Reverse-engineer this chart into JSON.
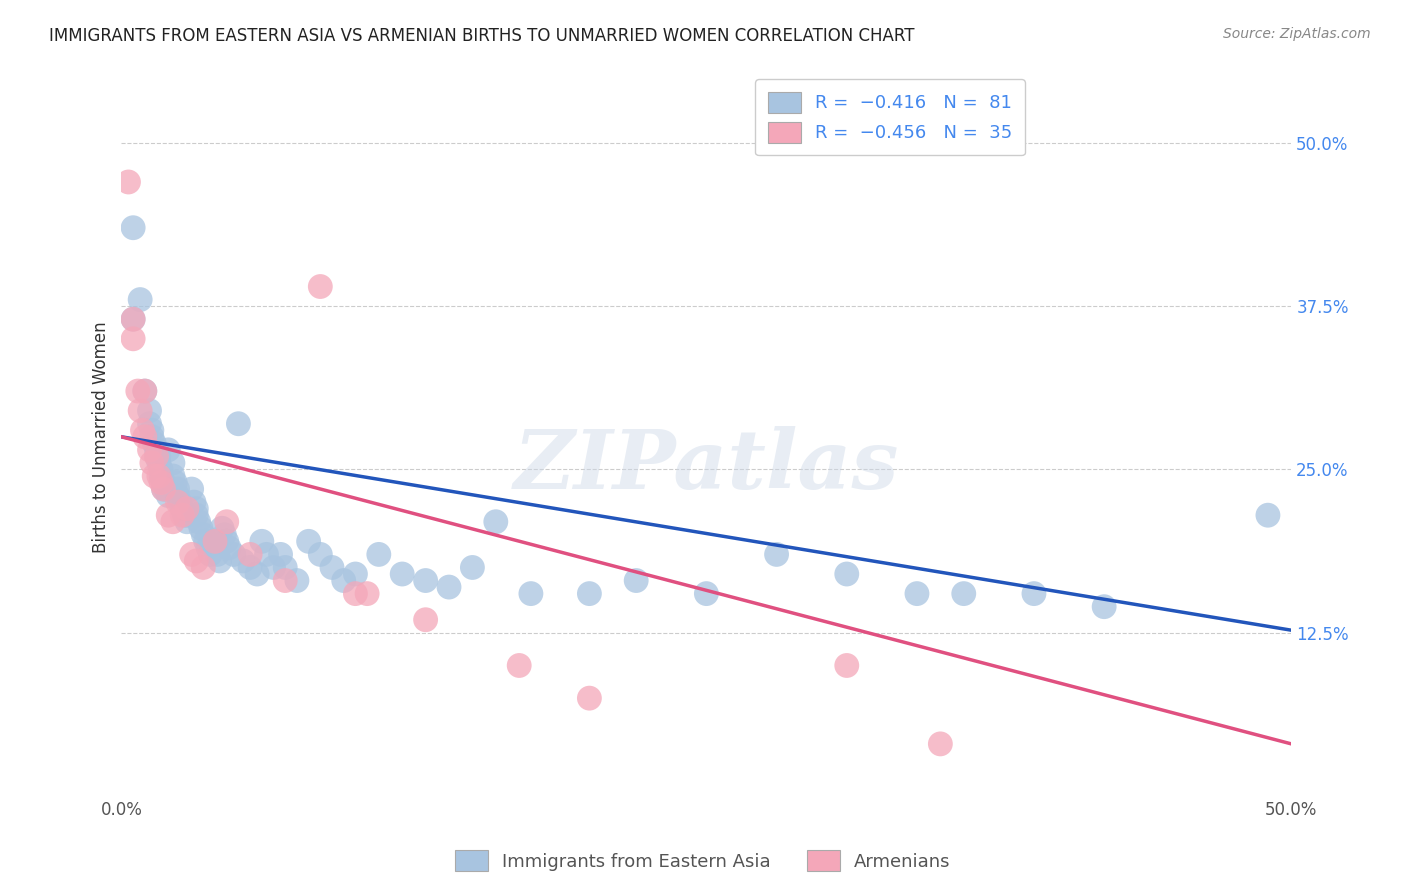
{
  "title": "IMMIGRANTS FROM EASTERN ASIA VS ARMENIAN BIRTHS TO UNMARRIED WOMEN CORRELATION CHART",
  "source": "Source: ZipAtlas.com",
  "ylabel": "Births to Unmarried Women",
  "yticks": [
    "50.0%",
    "37.5%",
    "25.0%",
    "12.5%"
  ],
  "ytick_vals": [
    0.5,
    0.375,
    0.25,
    0.125
  ],
  "xrange": [
    0.0,
    0.5
  ],
  "yrange": [
    0.0,
    0.55
  ],
  "label_blue": "Immigrants from Eastern Asia",
  "label_pink": "Armenians",
  "watermark": "ZIPatlas",
  "blue_color": "#a8c4e0",
  "pink_color": "#f4a7b9",
  "line_blue": "#2255bb",
  "line_pink": "#e05080",
  "blue_scatter": [
    [
      0.005,
      0.435
    ],
    [
      0.005,
      0.365
    ],
    [
      0.008,
      0.38
    ],
    [
      0.01,
      0.31
    ],
    [
      0.012,
      0.295
    ],
    [
      0.012,
      0.285
    ],
    [
      0.013,
      0.28
    ],
    [
      0.013,
      0.275
    ],
    [
      0.014,
      0.27
    ],
    [
      0.015,
      0.265
    ],
    [
      0.015,
      0.26
    ],
    [
      0.016,
      0.26
    ],
    [
      0.016,
      0.255
    ],
    [
      0.017,
      0.25
    ],
    [
      0.017,
      0.245
    ],
    [
      0.018,
      0.24
    ],
    [
      0.018,
      0.235
    ],
    [
      0.019,
      0.235
    ],
    [
      0.02,
      0.265
    ],
    [
      0.02,
      0.23
    ],
    [
      0.022,
      0.255
    ],
    [
      0.022,
      0.245
    ],
    [
      0.023,
      0.24
    ],
    [
      0.024,
      0.235
    ],
    [
      0.024,
      0.23
    ],
    [
      0.025,
      0.225
    ],
    [
      0.026,
      0.22
    ],
    [
      0.027,
      0.215
    ],
    [
      0.028,
      0.215
    ],
    [
      0.028,
      0.21
    ],
    [
      0.03,
      0.235
    ],
    [
      0.031,
      0.225
    ],
    [
      0.032,
      0.22
    ],
    [
      0.032,
      0.215
    ],
    [
      0.033,
      0.21
    ],
    [
      0.034,
      0.205
    ],
    [
      0.035,
      0.2
    ],
    [
      0.036,
      0.195
    ],
    [
      0.037,
      0.19
    ],
    [
      0.038,
      0.185
    ],
    [
      0.04,
      0.195
    ],
    [
      0.041,
      0.185
    ],
    [
      0.042,
      0.18
    ],
    [
      0.043,
      0.205
    ],
    [
      0.044,
      0.2
    ],
    [
      0.045,
      0.195
    ],
    [
      0.046,
      0.19
    ],
    [
      0.048,
      0.185
    ],
    [
      0.05,
      0.285
    ],
    [
      0.052,
      0.18
    ],
    [
      0.055,
      0.175
    ],
    [
      0.058,
      0.17
    ],
    [
      0.06,
      0.195
    ],
    [
      0.062,
      0.185
    ],
    [
      0.065,
      0.175
    ],
    [
      0.068,
      0.185
    ],
    [
      0.07,
      0.175
    ],
    [
      0.075,
      0.165
    ],
    [
      0.08,
      0.195
    ],
    [
      0.085,
      0.185
    ],
    [
      0.09,
      0.175
    ],
    [
      0.095,
      0.165
    ],
    [
      0.1,
      0.17
    ],
    [
      0.11,
      0.185
    ],
    [
      0.12,
      0.17
    ],
    [
      0.13,
      0.165
    ],
    [
      0.14,
      0.16
    ],
    [
      0.15,
      0.175
    ],
    [
      0.16,
      0.21
    ],
    [
      0.175,
      0.155
    ],
    [
      0.2,
      0.155
    ],
    [
      0.22,
      0.165
    ],
    [
      0.25,
      0.155
    ],
    [
      0.28,
      0.185
    ],
    [
      0.31,
      0.17
    ],
    [
      0.34,
      0.155
    ],
    [
      0.36,
      0.155
    ],
    [
      0.39,
      0.155
    ],
    [
      0.42,
      0.145
    ],
    [
      0.49,
      0.215
    ]
  ],
  "pink_scatter": [
    [
      0.003,
      0.47
    ],
    [
      0.005,
      0.365
    ],
    [
      0.005,
      0.35
    ],
    [
      0.007,
      0.31
    ],
    [
      0.008,
      0.295
    ],
    [
      0.009,
      0.28
    ],
    [
      0.01,
      0.31
    ],
    [
      0.01,
      0.275
    ],
    [
      0.012,
      0.265
    ],
    [
      0.013,
      0.255
    ],
    [
      0.014,
      0.245
    ],
    [
      0.015,
      0.26
    ],
    [
      0.016,
      0.245
    ],
    [
      0.017,
      0.24
    ],
    [
      0.018,
      0.235
    ],
    [
      0.02,
      0.215
    ],
    [
      0.022,
      0.21
    ],
    [
      0.024,
      0.225
    ],
    [
      0.026,
      0.215
    ],
    [
      0.028,
      0.22
    ],
    [
      0.03,
      0.185
    ],
    [
      0.032,
      0.18
    ],
    [
      0.035,
      0.175
    ],
    [
      0.04,
      0.195
    ],
    [
      0.045,
      0.21
    ],
    [
      0.055,
      0.185
    ],
    [
      0.07,
      0.165
    ],
    [
      0.085,
      0.39
    ],
    [
      0.1,
      0.155
    ],
    [
      0.105,
      0.155
    ],
    [
      0.13,
      0.135
    ],
    [
      0.17,
      0.1
    ],
    [
      0.2,
      0.075
    ],
    [
      0.31,
      0.1
    ],
    [
      0.35,
      0.04
    ]
  ],
  "blue_line": [
    [
      0.0,
      0.275
    ],
    [
      0.5,
      0.127
    ]
  ],
  "pink_line": [
    [
      0.0,
      0.275
    ],
    [
      0.5,
      0.04
    ]
  ]
}
